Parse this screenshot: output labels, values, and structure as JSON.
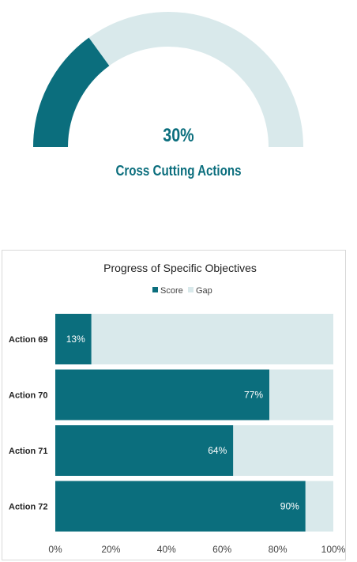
{
  "gauge": {
    "value": 30,
    "value_label": "30%",
    "label": "Cross Cutting Actions",
    "fill_color": "#0b6e7d",
    "track_color": "#d9e9eb"
  },
  "chart_data": {
    "type": "bar",
    "orientation": "horizontal",
    "stacked": true,
    "title": "Progress of Specific Objectives",
    "categories": [
      "Action 69",
      "Action 70",
      "Action 71",
      "Action 72"
    ],
    "series": [
      {
        "name": "Score",
        "values": [
          13,
          77,
          64,
          90
        ],
        "labels": [
          "13%",
          "77%",
          "64%",
          "90%"
        ],
        "color": "#0b6e7d"
      },
      {
        "name": "Gap",
        "values": [
          87,
          23,
          36,
          10
        ],
        "color": "#d9e9eb"
      }
    ],
    "xlim": [
      0,
      100
    ],
    "xticks": [
      0,
      20,
      40,
      60,
      80,
      100
    ],
    "xtick_labels": [
      "0%",
      "20%",
      "40%",
      "60%",
      "80%",
      "100%"
    ],
    "legend": "top",
    "grid": false
  }
}
